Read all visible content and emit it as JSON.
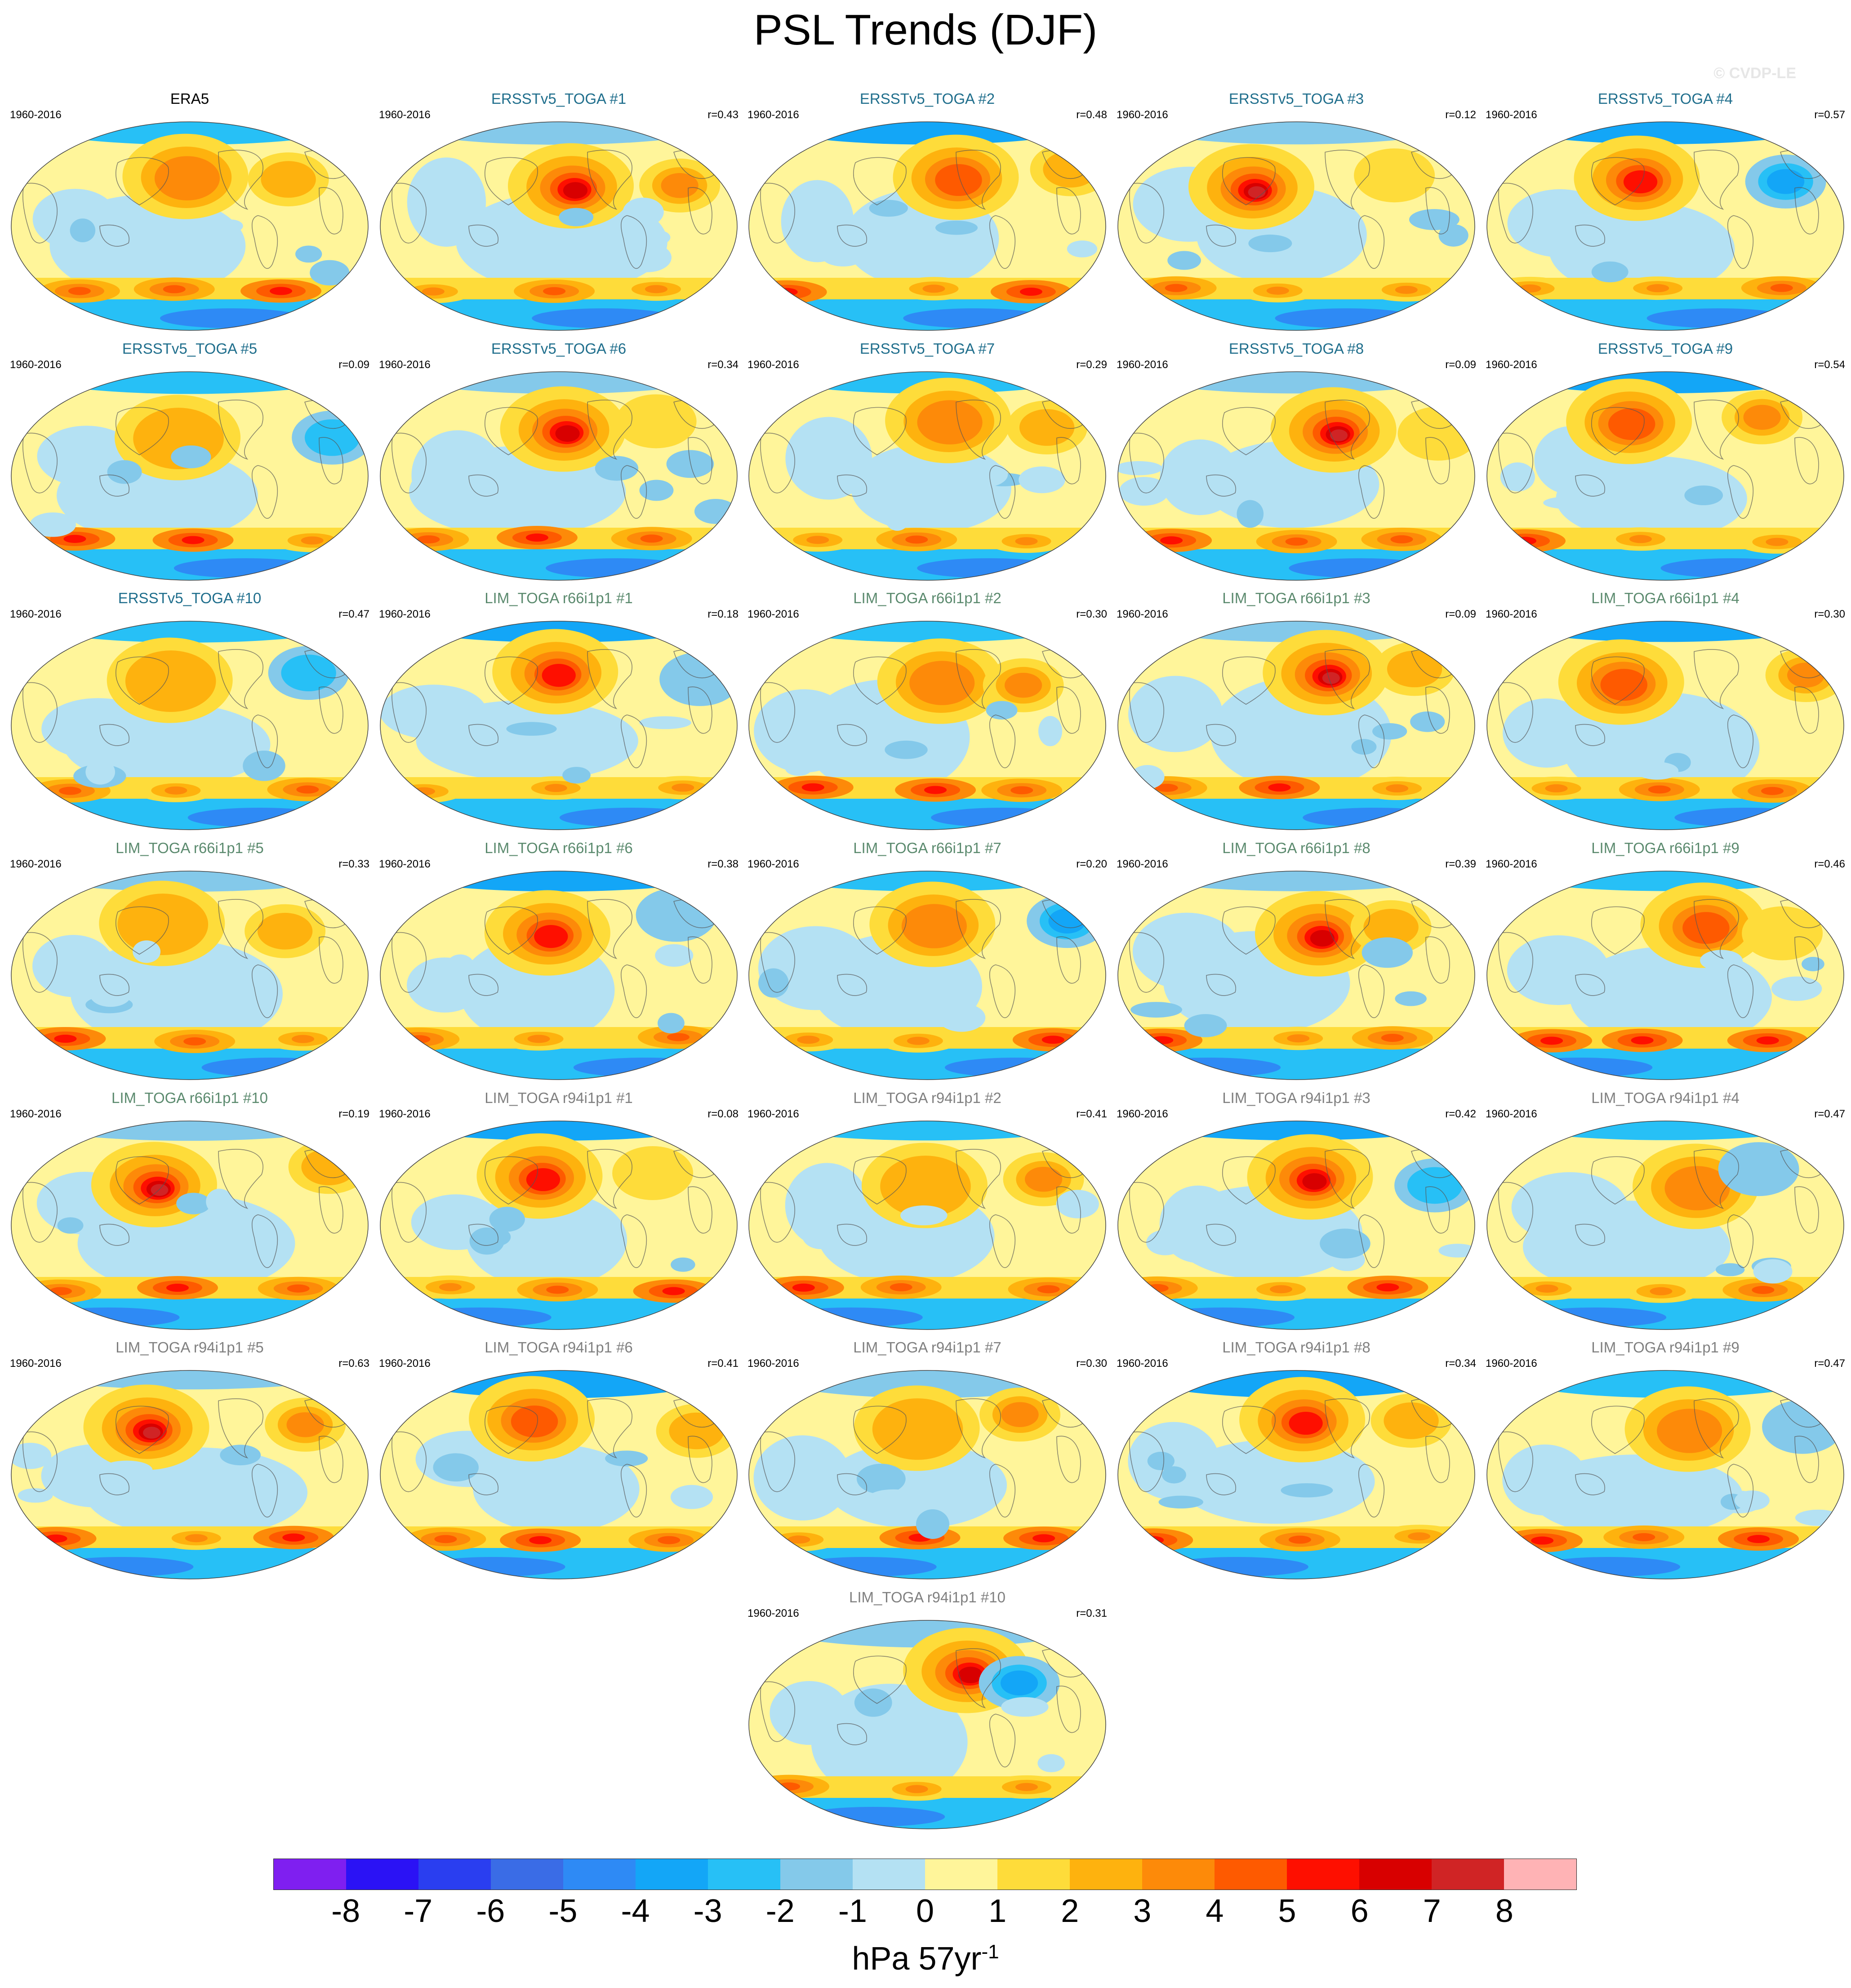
{
  "title": "PSL Trends (DJF)",
  "watermark": "© CVDP-LE",
  "colors": {
    "era_title": "#000000",
    "ersst_title": "#1f6e8c",
    "lim66_title": "#5b8a6e",
    "lim94_title": "#808080",
    "coast": "#555555"
  },
  "panels": [
    {
      "title": "ERA5",
      "group": "era",
      "period": "1960-2016",
      "r": ""
    },
    {
      "title": "ERSSTv5_TOGA #1",
      "group": "ersst",
      "period": "1960-2016",
      "r": "r=0.43"
    },
    {
      "title": "ERSSTv5_TOGA #2",
      "group": "ersst",
      "period": "1960-2016",
      "r": "r=0.48"
    },
    {
      "title": "ERSSTv5_TOGA #3",
      "group": "ersst",
      "period": "1960-2016",
      "r": "r=0.12"
    },
    {
      "title": "ERSSTv5_TOGA #4",
      "group": "ersst",
      "period": "1960-2016",
      "r": "r=0.57"
    },
    {
      "title": "ERSSTv5_TOGA #5",
      "group": "ersst",
      "period": "1960-2016",
      "r": "r=0.09"
    },
    {
      "title": "ERSSTv5_TOGA #6",
      "group": "ersst",
      "period": "1960-2016",
      "r": "r=0.34"
    },
    {
      "title": "ERSSTv5_TOGA #7",
      "group": "ersst",
      "period": "1960-2016",
      "r": "r=0.29"
    },
    {
      "title": "ERSSTv5_TOGA #8",
      "group": "ersst",
      "period": "1960-2016",
      "r": "r=0.09"
    },
    {
      "title": "ERSSTv5_TOGA #9",
      "group": "ersst",
      "period": "1960-2016",
      "r": "r=0.54"
    },
    {
      "title": "ERSSTv5_TOGA #10",
      "group": "ersst",
      "period": "1960-2016",
      "r": "r=0.47"
    },
    {
      "title": "LIM_TOGA r66i1p1 #1",
      "group": "lim66",
      "period": "1960-2016",
      "r": "r=0.18"
    },
    {
      "title": "LIM_TOGA r66i1p1 #2",
      "group": "lim66",
      "period": "1960-2016",
      "r": "r=0.30"
    },
    {
      "title": "LIM_TOGA r66i1p1 #3",
      "group": "lim66",
      "period": "1960-2016",
      "r": "r=0.09"
    },
    {
      "title": "LIM_TOGA r66i1p1 #4",
      "group": "lim66",
      "period": "1960-2016",
      "r": "r=0.30"
    },
    {
      "title": "LIM_TOGA r66i1p1 #5",
      "group": "lim66",
      "period": "1960-2016",
      "r": "r=0.33"
    },
    {
      "title": "LIM_TOGA r66i1p1 #6",
      "group": "lim66",
      "period": "1960-2016",
      "r": "r=0.38"
    },
    {
      "title": "LIM_TOGA r66i1p1 #7",
      "group": "lim66",
      "period": "1960-2016",
      "r": "r=0.20"
    },
    {
      "title": "LIM_TOGA r66i1p1 #8",
      "group": "lim66",
      "period": "1960-2016",
      "r": "r=0.39"
    },
    {
      "title": "LIM_TOGA r66i1p1 #9",
      "group": "lim66",
      "period": "1960-2016",
      "r": "r=0.46"
    },
    {
      "title": "LIM_TOGA r66i1p1 #10",
      "group": "lim66",
      "period": "1960-2016",
      "r": "r=0.19"
    },
    {
      "title": "LIM_TOGA r94i1p1 #1",
      "group": "lim94",
      "period": "1960-2016",
      "r": "r=0.08"
    },
    {
      "title": "LIM_TOGA r94i1p1 #2",
      "group": "lim94",
      "period": "1960-2016",
      "r": "r=0.41"
    },
    {
      "title": "LIM_TOGA r94i1p1 #3",
      "group": "lim94",
      "period": "1960-2016",
      "r": "r=0.42"
    },
    {
      "title": "LIM_TOGA r94i1p1 #4",
      "group": "lim94",
      "period": "1960-2016",
      "r": "r=0.47"
    },
    {
      "title": "LIM_TOGA r94i1p1 #5",
      "group": "lim94",
      "period": "1960-2016",
      "r": "r=0.63"
    },
    {
      "title": "LIM_TOGA r94i1p1 #6",
      "group": "lim94",
      "period": "1960-2016",
      "r": "r=0.41"
    },
    {
      "title": "LIM_TOGA r94i1p1 #7",
      "group": "lim94",
      "period": "1960-2016",
      "r": "r=0.30"
    },
    {
      "title": "LIM_TOGA r94i1p1 #8",
      "group": "lim94",
      "period": "1960-2016",
      "r": "r=0.34"
    },
    {
      "title": "LIM_TOGA r94i1p1 #9",
      "group": "lim94",
      "period": "1960-2016",
      "r": "r=0.47"
    },
    {
      "title": "LIM_TOGA r94i1p1 #10",
      "group": "lim94",
      "period": "1960-2016",
      "r": "r=0.31"
    }
  ],
  "colorbar": {
    "colors": [
      "#7f1ff0",
      "#2b12f5",
      "#2a3ef0",
      "#3a6ce6",
      "#2e8af5",
      "#13a6f7",
      "#27c0f6",
      "#84c9ea",
      "#b4e1f3",
      "#fff59a",
      "#fedc3a",
      "#feb20e",
      "#fd8a09",
      "#fe5a00",
      "#fe0f00",
      "#d80000",
      "#d02425",
      "#ffb3b5"
    ],
    "labels": [
      "-8",
      "-7",
      "-6",
      "-5",
      "-4",
      "-3",
      "-2",
      "-1",
      "0",
      "1",
      "2",
      "3",
      "4",
      "5",
      "6",
      "7",
      "8"
    ],
    "units_main": "hPa 57yr",
    "units_exp": "-1"
  }
}
